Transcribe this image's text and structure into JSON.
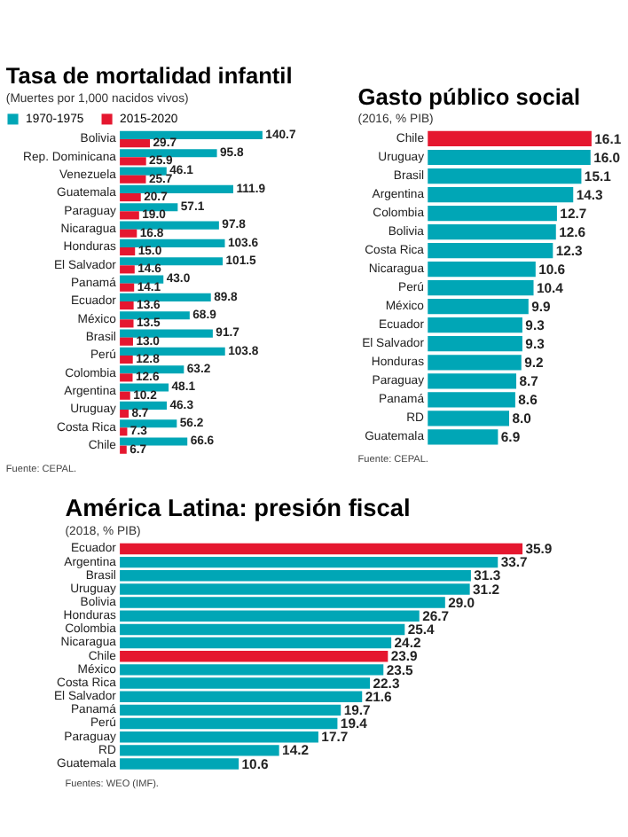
{
  "chart_data": [
    {
      "type": "bar",
      "orientation": "horizontal",
      "title": "Tasa de mortalidad infantil",
      "subtitle": "(Muertes por 1,000 nacidos vivos)",
      "categories": [
        "Bolivia",
        "Rep. Dominicana",
        "Venezuela",
        "Guatemala",
        "Paraguay",
        "Nicaragua",
        "Honduras",
        "El Salvador",
        "Panamá",
        "Ecuador",
        "México",
        "Brasil",
        "Perú",
        "Colombia",
        "Argentina",
        "Uruguay",
        "Costa Rica",
        "Chile"
      ],
      "series": [
        {
          "name": "1970-1975",
          "color": "#00a6b6",
          "values": [
            140.7,
            95.8,
            46.1,
            111.9,
            57.1,
            97.8,
            103.6,
            101.5,
            43.0,
            89.8,
            68.9,
            91.7,
            103.8,
            63.2,
            48.1,
            46.3,
            56.2,
            66.6
          ],
          "value_labels": [
            "140.7",
            "95.8",
            "46.1",
            "111.9",
            "57.1",
            "97.8",
            "103.6",
            "101.5",
            "43.0",
            "89.8",
            "68.9",
            "91.7",
            "103.8",
            "63.2",
            "48.1",
            "46.3",
            "56.2",
            "66.6"
          ]
        },
        {
          "name": "2015-2020",
          "color": "#e5172f",
          "values": [
            29.7,
            25.9,
            25.7,
            20.7,
            19.0,
            16.8,
            15.0,
            14.6,
            14.1,
            13.6,
            13.5,
            13.0,
            12.8,
            12.6,
            10.2,
            8.7,
            7.3,
            6.7
          ],
          "value_labels": [
            "29.7",
            "25.9",
            "25.7",
            "20.7",
            "19.0",
            "16.8",
            "15.0",
            "14.6",
            "14.1",
            "13.6",
            "13.5",
            "13.0",
            "12.8",
            "12.6",
            "10.2",
            "8.7",
            "7.3",
            "6.7"
          ]
        }
      ],
      "legend": "top left",
      "tick_labels": "y",
      "annotations": [
        "Fuente: CEPAL."
      ]
    },
    {
      "type": "bar",
      "orientation": "horizontal",
      "title": "Gasto público social",
      "subtitle": "(2016, % PIB)",
      "categories": [
        "Chile",
        "Uruguay",
        "Brasil",
        "Argentina",
        "Colombia",
        "Bolivia",
        "Costa Rica",
        "Nicaragua",
        "Perú",
        "México",
        "Ecuador",
        "El Salvador",
        "Honduras",
        "Paraguay",
        "Panamá",
        "RD",
        "Guatemala"
      ],
      "values": [
        16.1,
        16.0,
        15.1,
        14.3,
        12.7,
        12.6,
        12.3,
        10.6,
        10.4,
        9.9,
        9.3,
        9.3,
        9.2,
        8.7,
        8.6,
        8.0,
        6.9
      ],
      "value_labels": [
        "16.1",
        "16.0",
        "15.1",
        "14.3",
        "12.7",
        "12.6",
        "12.3",
        "10.6",
        "10.4",
        "9.9",
        "9.3",
        "9.3",
        "9.2",
        "8.7",
        "8.6",
        "8.0",
        "6.9"
      ],
      "colors": [
        "#e5172f",
        "#00a6b6",
        "#00a6b6",
        "#00a6b6",
        "#00a6b6",
        "#00a6b6",
        "#00a6b6",
        "#00a6b6",
        "#00a6b6",
        "#00a6b6",
        "#00a6b6",
        "#00a6b6",
        "#00a6b6",
        "#00a6b6",
        "#00a6b6",
        "#00a6b6",
        "#00a6b6"
      ],
      "tick_labels": "y",
      "annotations": [
        "Fuente: CEPAL."
      ]
    },
    {
      "type": "bar",
      "orientation": "horizontal",
      "title": "América Latina: presión fiscal",
      "subtitle": "(2018, % PIB)",
      "categories": [
        "Ecuador",
        "Argentina",
        "Brasil",
        "Uruguay",
        "Bolivia",
        "Honduras",
        "Colombia",
        "Nicaragua",
        "Chile",
        "México",
        "Costa Rica",
        "El Salvador",
        "Panamá",
        "Perú",
        "Paraguay",
        "RD",
        "Guatemala"
      ],
      "values": [
        35.9,
        33.7,
        31.3,
        31.2,
        29.0,
        26.7,
        25.4,
        24.2,
        23.9,
        23.5,
        22.3,
        21.6,
        19.7,
        19.4,
        17.7,
        14.2,
        10.6
      ],
      "value_labels": [
        "35.9",
        "33.7",
        "31.3",
        "31.2",
        "29.0",
        "26.7",
        "25.4",
        "24.2",
        "23.9",
        "23.5",
        "22.3",
        "21.6",
        "19.7",
        "19.4",
        "17.7",
        "14.2",
        "10.6"
      ],
      "colors": [
        "#e5172f",
        "#00a6b6",
        "#00a6b6",
        "#00a6b6",
        "#00a6b6",
        "#00a6b6",
        "#00a6b6",
        "#00a6b6",
        "#e5172f",
        "#00a6b6",
        "#00a6b6",
        "#00a6b6",
        "#00a6b6",
        "#00a6b6",
        "#00a6b6",
        "#00a6b6",
        "#00a6b6"
      ],
      "tick_labels": "y",
      "annotations": [
        "Fuentes: WEO (IMF)."
      ]
    }
  ]
}
